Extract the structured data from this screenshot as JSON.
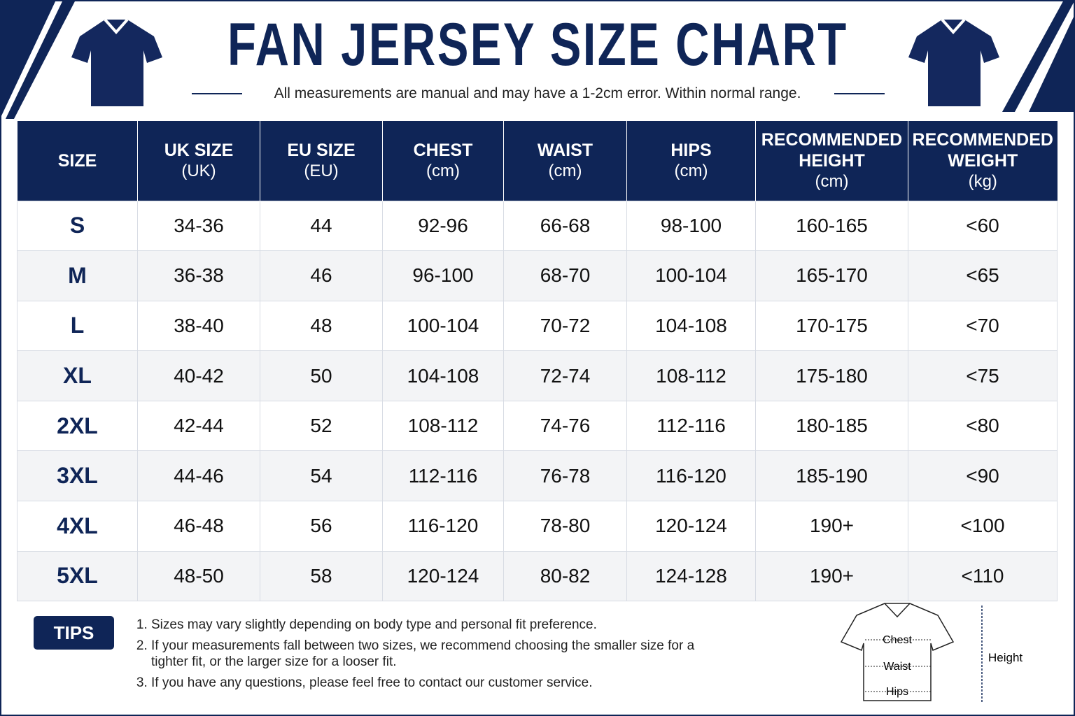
{
  "header": {
    "title": "FAN JERSEY SIZE CHART",
    "subtitle": "All measurements are manual and may have a 1-2cm error. Within normal range."
  },
  "table": {
    "headers": [
      [
        "SIZE"
      ],
      [
        "UK SIZE",
        "(UK)"
      ],
      [
        "EU SIZE",
        "(EU)"
      ],
      [
        "CHEST",
        "(cm)"
      ],
      [
        "WAIST",
        "(cm)"
      ],
      [
        "HIPS",
        "(cm)"
      ],
      [
        "RECOMMENDED",
        "HEIGHT",
        "(cm)"
      ],
      [
        "RECOMMENDED",
        "WEIGHT",
        "(kg)"
      ]
    ],
    "rows": [
      [
        "S",
        "34-36",
        "44",
        "92-96",
        "66-68",
        "98-100",
        "160-165",
        "<60"
      ],
      [
        "M",
        "36-38",
        "46",
        "96-100",
        "68-70",
        "100-104",
        "165-170",
        "<65"
      ],
      [
        "L",
        "38-40",
        "48",
        "100-104",
        "70-72",
        "104-108",
        "170-175",
        "<70"
      ],
      [
        "XL",
        "40-42",
        "50",
        "104-108",
        "72-74",
        "108-112",
        "175-180",
        "<75"
      ],
      [
        "2XL",
        "42-44",
        "52",
        "108-112",
        "74-76",
        "112-116",
        "180-185",
        "<80"
      ],
      [
        "3XL",
        "44-46",
        "54",
        "112-116",
        "76-78",
        "116-120",
        "185-190",
        "<90"
      ],
      [
        "4XL",
        "46-48",
        "56",
        "116-120",
        "78-80",
        "120-124",
        "190+",
        "<100"
      ],
      [
        "5XL",
        "48-50",
        "58",
        "120-124",
        "80-82",
        "124-128",
        "190+",
        "<110"
      ]
    ]
  },
  "tips": {
    "label": "TIPS",
    "items": [
      "Sizes may vary slightly depending on body type and personal fit preference.",
      "If your measurements fall between two sizes, we recommend choosing the smaller size for a tighter fit, or the larger size for a looser fit.",
      "If you have any questions, please feel free to contact our customer service."
    ]
  },
  "diagram": {
    "chest": "Chest",
    "waist": "Waist",
    "hips": "Hips",
    "height": "Height"
  }
}
